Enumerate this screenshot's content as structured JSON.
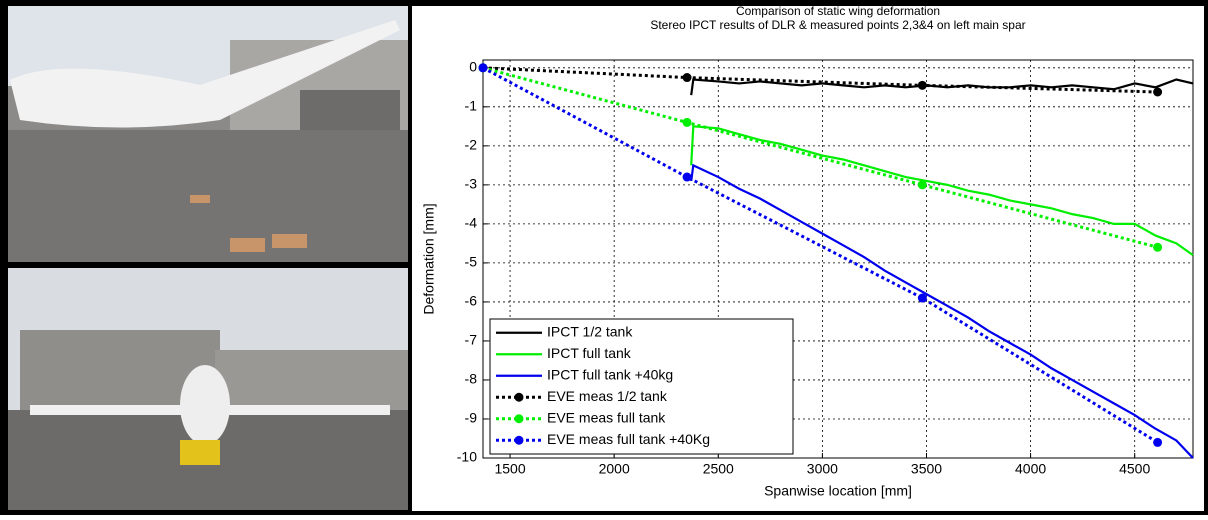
{
  "chart_data": {
    "type": "line",
    "title": "Comparison of static wing deformation",
    "subtitle": "Stereo IPCT results of DLR & measured points 2,3&4 on left main spar",
    "x_label": "Spanwise location [mm]",
    "y_label": "Deformation [mm]",
    "xlim": [
      1370,
      4780
    ],
    "ylim": [
      -10,
      0.2
    ],
    "xticks": [
      1500,
      2000,
      2500,
      3000,
      3500,
      4000,
      4500
    ],
    "yticks": [
      0,
      -1,
      -2,
      -3,
      -4,
      -5,
      -6,
      -7,
      -8,
      -9,
      -10
    ],
    "grid": true,
    "legend": "lower-left",
    "series": [
      {
        "name": "IPCT 1/2 tank",
        "color": "#000000",
        "style": "solid",
        "marker": false,
        "x": [
          2370,
          2380,
          2500,
          2600,
          2700,
          2800,
          2900,
          3000,
          3100,
          3200,
          3300,
          3400,
          3500,
          3600,
          3700,
          3800,
          3900,
          4000,
          4100,
          4200,
          4300,
          4400,
          4500,
          4600,
          4700,
          4780
        ],
        "values": [
          -0.7,
          -0.3,
          -0.35,
          -0.4,
          -0.35,
          -0.4,
          -0.45,
          -0.4,
          -0.45,
          -0.5,
          -0.45,
          -0.5,
          -0.45,
          -0.5,
          -0.45,
          -0.5,
          -0.5,
          -0.45,
          -0.5,
          -0.45,
          -0.5,
          -0.55,
          -0.4,
          -0.5,
          -0.3,
          -0.4
        ]
      },
      {
        "name": "IPCT full tank",
        "color": "#00ee00",
        "style": "solid",
        "marker": false,
        "x": [
          2370,
          2380,
          2500,
          2600,
          2700,
          2800,
          2900,
          3000,
          3100,
          3200,
          3300,
          3400,
          3500,
          3600,
          3700,
          3800,
          3900,
          4000,
          4100,
          4200,
          4300,
          4400,
          4500,
          4600,
          4700,
          4780
        ],
        "values": [
          -2.5,
          -1.5,
          -1.55,
          -1.7,
          -1.85,
          -1.95,
          -2.1,
          -2.25,
          -2.35,
          -2.5,
          -2.65,
          -2.8,
          -2.9,
          -3.0,
          -3.15,
          -3.25,
          -3.4,
          -3.5,
          -3.6,
          -3.75,
          -3.85,
          -4.0,
          -4.0,
          -4.3,
          -4.5,
          -4.8
        ]
      },
      {
        "name": "IPCT full tank +40kg",
        "color": "#0000ee",
        "style": "solid",
        "marker": false,
        "x": [
          2370,
          2380,
          2500,
          2600,
          2700,
          2800,
          2900,
          3000,
          3100,
          3200,
          3300,
          3400,
          3500,
          3600,
          3700,
          3800,
          3900,
          4000,
          4100,
          4200,
          4300,
          4400,
          4500,
          4600,
          4700,
          4780
        ],
        "values": [
          -2.9,
          -2.5,
          -2.8,
          -3.1,
          -3.35,
          -3.65,
          -3.95,
          -4.25,
          -4.55,
          -4.85,
          -5.2,
          -5.5,
          -5.8,
          -6.1,
          -6.4,
          -6.75,
          -7.05,
          -7.35,
          -7.7,
          -8.0,
          -8.3,
          -8.6,
          -8.9,
          -9.25,
          -9.55,
          -10
        ]
      },
      {
        "name": "EVE meas 1/2 tank",
        "color": "#000000",
        "style": "dotted",
        "marker": true,
        "x": [
          1370,
          2350,
          3480,
          4610
        ],
        "values": [
          0,
          -0.25,
          -0.45,
          -0.62
        ]
      },
      {
        "name": "EVE meas full tank",
        "color": "#00ee00",
        "style": "dotted",
        "marker": true,
        "x": [
          1370,
          2350,
          3480,
          4610
        ],
        "values": [
          0,
          -1.4,
          -3.0,
          -4.6
        ]
      },
      {
        "name": "EVE meas full tank +40Kg",
        "color": "#0000ee",
        "style": "dotted",
        "marker": true,
        "x": [
          1370,
          2350,
          3480,
          4610
        ],
        "values": [
          0,
          -2.8,
          -5.9,
          -9.6
        ]
      }
    ]
  }
}
